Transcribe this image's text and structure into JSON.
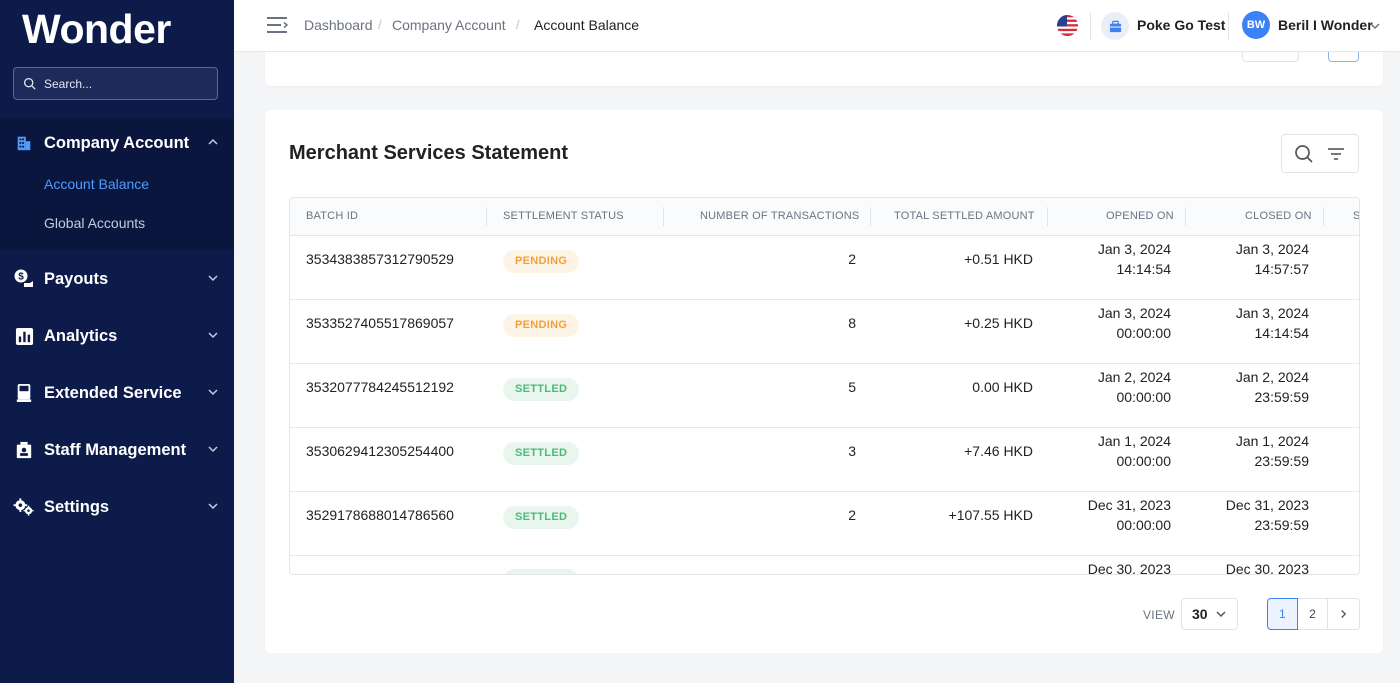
{
  "sidebar": {
    "logo": "Wonder",
    "search_placeholder": "Search...",
    "company_account": {
      "label": "Company Account",
      "sub": [
        "Account Balance",
        "Global Accounts"
      ]
    },
    "items": [
      {
        "label": "Payouts",
        "icon": "payouts-icon"
      },
      {
        "label": "Analytics",
        "icon": "analytics-icon"
      },
      {
        "label": "Extended Service",
        "icon": "extended-service-icon"
      },
      {
        "label": "Staff Management",
        "icon": "staff-icon"
      },
      {
        "label": "Settings",
        "icon": "gear-icon"
      }
    ]
  },
  "header": {
    "breadcrumb": [
      "Dashboard",
      "Company Account",
      "Account Balance"
    ],
    "store_name": "Poke Go Test",
    "avatar_initials": "BW",
    "user_name": "Beril I Wonder"
  },
  "statement": {
    "title": "Merchant Services Statement",
    "columns": [
      "BATCH ID",
      "SETTLEMENT STATUS",
      "NUMBER OF TRANSACTIONS",
      "TOTAL SETTLED AMOUNT",
      "OPENED ON",
      "CLOSED ON",
      "S"
    ],
    "rows": [
      {
        "batch_id": "3534383857312790529",
        "status": "PENDING",
        "count": "2",
        "amount": "+0.51 HKD",
        "opened_date": "Jan 3, 2024",
        "opened_time": "14:14:54",
        "closed_date": "Jan 3, 2024",
        "closed_time": "14:57:57"
      },
      {
        "batch_id": "3533527405517869057",
        "status": "PENDING",
        "count": "8",
        "amount": "+0.25 HKD",
        "opened_date": "Jan 3, 2024",
        "opened_time": "00:00:00",
        "closed_date": "Jan 3, 2024",
        "closed_time": "14:14:54"
      },
      {
        "batch_id": "3532077784245512192",
        "status": "SETTLED",
        "count": "5",
        "amount": "0.00 HKD",
        "opened_date": "Jan 2, 2024",
        "opened_time": "00:00:00",
        "closed_date": "Jan 2, 2024",
        "closed_time": "23:59:59"
      },
      {
        "batch_id": "3530629412305254400",
        "status": "SETTLED",
        "count": "3",
        "amount": "+7.46 HKD",
        "opened_date": "Jan 1, 2024",
        "opened_time": "00:00:00",
        "closed_date": "Jan 1, 2024",
        "closed_time": "23:59:59"
      },
      {
        "batch_id": "3529178688014786560",
        "status": "SETTLED",
        "count": "2",
        "amount": "+107.55 HKD",
        "opened_date": "Dec 31, 2023",
        "opened_time": "00:00:00",
        "closed_date": "Dec 31, 2023",
        "closed_time": "23:59:59"
      },
      {
        "batch_id": "",
        "status": "",
        "count": "",
        "amount": "",
        "opened_date": "Dec 30, 2023",
        "opened_time": "",
        "closed_date": "Dec 30, 2023",
        "closed_time": ""
      }
    ]
  },
  "pagination": {
    "view_label": "VIEW",
    "page_size": "30",
    "pages": [
      "1",
      "2"
    ],
    "current_page": "1"
  },
  "colors": {
    "sidebar_bg": "#0d1b4b",
    "accent": "#3b82f6",
    "pending": "#f0a23a",
    "settled": "#4fb87a"
  }
}
